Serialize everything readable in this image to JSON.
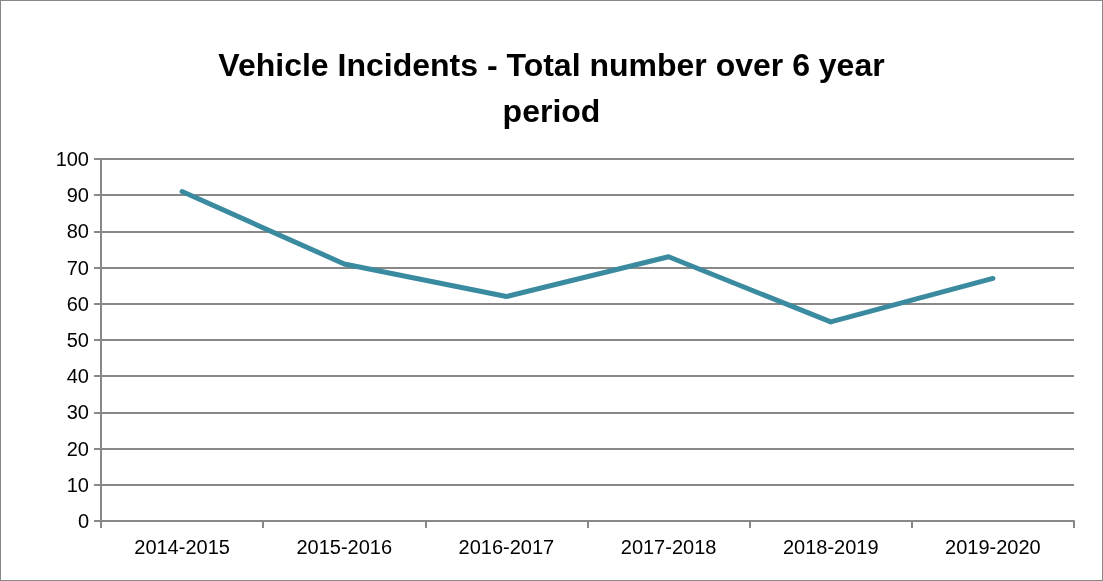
{
  "chart_data": {
    "type": "line",
    "title": "Vehicle Incidents - Total number over 6 year\nperiod",
    "categories": [
      "2014-2015",
      "2015-2016",
      "2016-2017",
      "2017-2018",
      "2018-2019",
      "2019-2020"
    ],
    "series": [
      {
        "color": "#3b8ba0",
        "values": [
          91,
          71,
          62,
          73,
          55,
          67
        ]
      }
    ],
    "ylim": [
      0,
      100
    ],
    "yticks": [
      0,
      10,
      20,
      30,
      40,
      50,
      60,
      70,
      80,
      90,
      100
    ],
    "grid": "y",
    "marker": "none",
    "line_style": "solid"
  }
}
